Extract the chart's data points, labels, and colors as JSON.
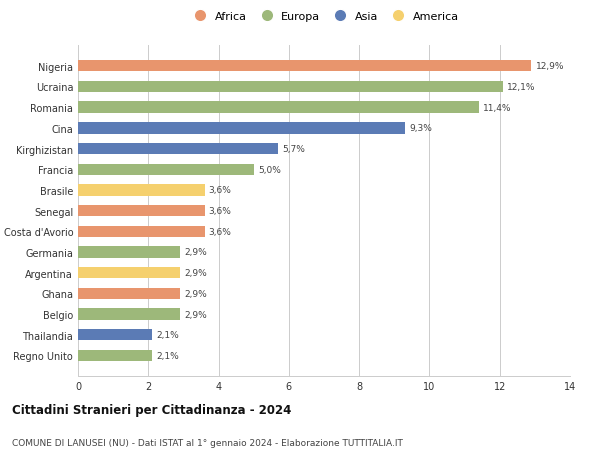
{
  "categories": [
    "Regno Unito",
    "Thailandia",
    "Belgio",
    "Ghana",
    "Argentina",
    "Germania",
    "Costa d'Avorio",
    "Senegal",
    "Brasile",
    "Francia",
    "Kirghizistan",
    "Cina",
    "Romania",
    "Ucraina",
    "Nigeria"
  ],
  "values": [
    2.1,
    2.1,
    2.9,
    2.9,
    2.9,
    2.9,
    3.6,
    3.6,
    3.6,
    5.0,
    5.7,
    9.3,
    11.4,
    12.1,
    12.9
  ],
  "colors": [
    "#9db87a",
    "#5b7bb5",
    "#9db87a",
    "#e8956d",
    "#f5d06e",
    "#9db87a",
    "#e8956d",
    "#e8956d",
    "#f5d06e",
    "#9db87a",
    "#5b7bb5",
    "#5b7bb5",
    "#9db87a",
    "#9db87a",
    "#e8956d"
  ],
  "labels": [
    "2,1%",
    "2,1%",
    "2,9%",
    "2,9%",
    "2,9%",
    "2,9%",
    "3,6%",
    "3,6%",
    "3,6%",
    "5,0%",
    "5,7%",
    "9,3%",
    "11,4%",
    "12,1%",
    "12,9%"
  ],
  "legend": [
    {
      "label": "Africa",
      "color": "#e8956d"
    },
    {
      "label": "Europa",
      "color": "#9db87a"
    },
    {
      "label": "Asia",
      "color": "#5b7bb5"
    },
    {
      "label": "America",
      "color": "#f5d06e"
    }
  ],
  "title": "Cittadini Stranieri per Cittadinanza - 2024",
  "subtitle": "COMUNE DI LANUSEI (NU) - Dati ISTAT al 1° gennaio 2024 - Elaborazione TUTTITALIA.IT",
  "xlim": [
    0,
    14
  ],
  "xticks": [
    0,
    2,
    4,
    6,
    8,
    10,
    12,
    14
  ],
  "background_color": "#ffffff",
  "grid_color": "#cccccc"
}
